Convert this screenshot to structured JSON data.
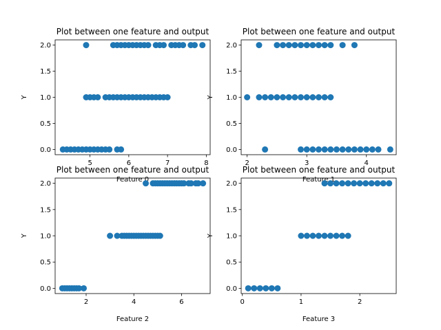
{
  "chart_data": [
    {
      "type": "scatter",
      "title": "Plot between one feature and output",
      "xlabel": "Feature 0",
      "ylabel": "Y",
      "xlim": [
        4.1,
        8.1
      ],
      "ylim": [
        -0.1,
        2.1
      ],
      "xticks": [
        5,
        6,
        7,
        8
      ],
      "yticks": [
        0.0,
        0.5,
        1.0,
        1.5,
        2.0
      ],
      "ytick_labels": [
        "0.0",
        "0.5",
        "1.0",
        "1.5",
        "2.0"
      ],
      "grid": false,
      "marker_color": "#1f77b4",
      "points": {
        "x": [
          4.3,
          4.4,
          4.5,
          4.6,
          4.7,
          4.8,
          4.9,
          5.0,
          5.1,
          5.2,
          5.3,
          5.4,
          5.5,
          5.7,
          5.8,
          4.9,
          5.0,
          5.1,
          5.2,
          5.4,
          5.5,
          5.6,
          5.7,
          5.8,
          5.9,
          6.0,
          6.1,
          6.2,
          6.3,
          6.4,
          6.5,
          6.6,
          6.7,
          6.8,
          6.9,
          7.0,
          4.9,
          5.6,
          5.7,
          5.8,
          5.9,
          6.0,
          6.1,
          6.2,
          6.3,
          6.4,
          6.5,
          6.7,
          6.8,
          6.9,
          7.1,
          7.2,
          7.3,
          7.4,
          7.6,
          7.7,
          7.9
        ],
        "y": [
          0,
          0,
          0,
          0,
          0,
          0,
          0,
          0,
          0,
          0,
          0,
          0,
          0,
          0,
          0,
          1,
          1,
          1,
          1,
          1,
          1,
          1,
          1,
          1,
          1,
          1,
          1,
          1,
          1,
          1,
          1,
          1,
          1,
          1,
          1,
          1,
          2,
          2,
          2,
          2,
          2,
          2,
          2,
          2,
          2,
          2,
          2,
          2,
          2,
          2,
          2,
          2,
          2,
          2,
          2,
          2,
          2
        ]
      }
    },
    {
      "type": "scatter",
      "title": "Plot between one feature and output",
      "xlabel": "Feature 1",
      "ylabel": "Y",
      "xlim": [
        1.9,
        4.5
      ],
      "ylim": [
        -0.1,
        2.1
      ],
      "xticks": [
        2,
        3,
        4
      ],
      "yticks": [
        0.0,
        0.5,
        1.0,
        1.5,
        2.0
      ],
      "ytick_labels": [
        "0.0",
        "0.5",
        "1.0",
        "1.5",
        "2.0"
      ],
      "grid": false,
      "marker_color": "#1f77b4",
      "points": {
        "x": [
          2.3,
          2.9,
          3.0,
          3.1,
          3.2,
          3.3,
          3.4,
          3.5,
          3.6,
          3.7,
          3.8,
          3.9,
          4.0,
          4.1,
          4.2,
          4.4,
          2.0,
          2.2,
          2.3,
          2.4,
          2.5,
          2.6,
          2.7,
          2.8,
          2.9,
          3.0,
          3.1,
          3.2,
          3.3,
          3.4,
          2.2,
          2.5,
          2.6,
          2.7,
          2.8,
          2.9,
          3.0,
          3.1,
          3.2,
          3.3,
          3.4,
          3.6,
          3.8
        ],
        "y": [
          0,
          0,
          0,
          0,
          0,
          0,
          0,
          0,
          0,
          0,
          0,
          0,
          0,
          0,
          0,
          0,
          1,
          1,
          1,
          1,
          1,
          1,
          1,
          1,
          1,
          1,
          1,
          1,
          1,
          1,
          2,
          2,
          2,
          2,
          2,
          2,
          2,
          2,
          2,
          2,
          2,
          2,
          2
        ]
      }
    },
    {
      "type": "scatter",
      "title": "Plot between one feature and output",
      "xlabel": "Feature 2",
      "ylabel": "Y",
      "xlim": [
        0.7,
        7.2
      ],
      "ylim": [
        -0.1,
        2.1
      ],
      "xticks": [
        2,
        4,
        6
      ],
      "yticks": [
        0.0,
        0.5,
        1.0,
        1.5,
        2.0
      ],
      "ytick_labels": [
        "0.0",
        "0.5",
        "1.0",
        "1.5",
        "2.0"
      ],
      "grid": false,
      "marker_color": "#1f77b4",
      "points": {
        "x": [
          1.0,
          1.1,
          1.2,
          1.3,
          1.4,
          1.5,
          1.6,
          1.7,
          1.9,
          3.0,
          3.3,
          3.5,
          3.6,
          3.7,
          3.8,
          3.9,
          4.0,
          4.1,
          4.2,
          4.3,
          4.4,
          4.5,
          4.6,
          4.7,
          4.8,
          4.9,
          5.0,
          5.1,
          4.5,
          4.8,
          4.9,
          5.0,
          5.1,
          5.2,
          5.3,
          5.4,
          5.5,
          5.6,
          5.7,
          5.8,
          5.9,
          6.0,
          6.1,
          6.3,
          6.4,
          6.6,
          6.7,
          6.9
        ],
        "y": [
          0,
          0,
          0,
          0,
          0,
          0,
          0,
          0,
          0,
          1,
          1,
          1,
          1,
          1,
          1,
          1,
          1,
          1,
          1,
          1,
          1,
          1,
          1,
          1,
          1,
          1,
          1,
          1,
          2,
          2,
          2,
          2,
          2,
          2,
          2,
          2,
          2,
          2,
          2,
          2,
          2,
          2,
          2,
          2,
          2,
          2,
          2,
          2
        ]
      }
    },
    {
      "type": "scatter",
      "title": "Plot between one feature and output",
      "xlabel": "Feature 3",
      "ylabel": "Y",
      "xlim": [
        -0.02,
        2.62
      ],
      "ylim": [
        -0.1,
        2.1
      ],
      "xticks": [
        0,
        1,
        2
      ],
      "yticks": [
        0.0,
        0.5,
        1.0,
        1.5,
        2.0
      ],
      "ytick_labels": [
        "0.0",
        "0.5",
        "1.0",
        "1.5",
        "2.0"
      ],
      "grid": false,
      "marker_color": "#1f77b4",
      "points": {
        "x": [
          0.1,
          0.2,
          0.3,
          0.4,
          0.5,
          0.6,
          1.0,
          1.1,
          1.2,
          1.3,
          1.4,
          1.5,
          1.6,
          1.7,
          1.8,
          1.4,
          1.5,
          1.6,
          1.7,
          1.8,
          1.9,
          2.0,
          2.1,
          2.2,
          2.3,
          2.4,
          2.5
        ],
        "y": [
          0,
          0,
          0,
          0,
          0,
          0,
          1,
          1,
          1,
          1,
          1,
          1,
          1,
          1,
          1,
          2,
          2,
          2,
          2,
          2,
          2,
          2,
          2,
          2,
          2,
          2,
          2
        ]
      }
    }
  ]
}
